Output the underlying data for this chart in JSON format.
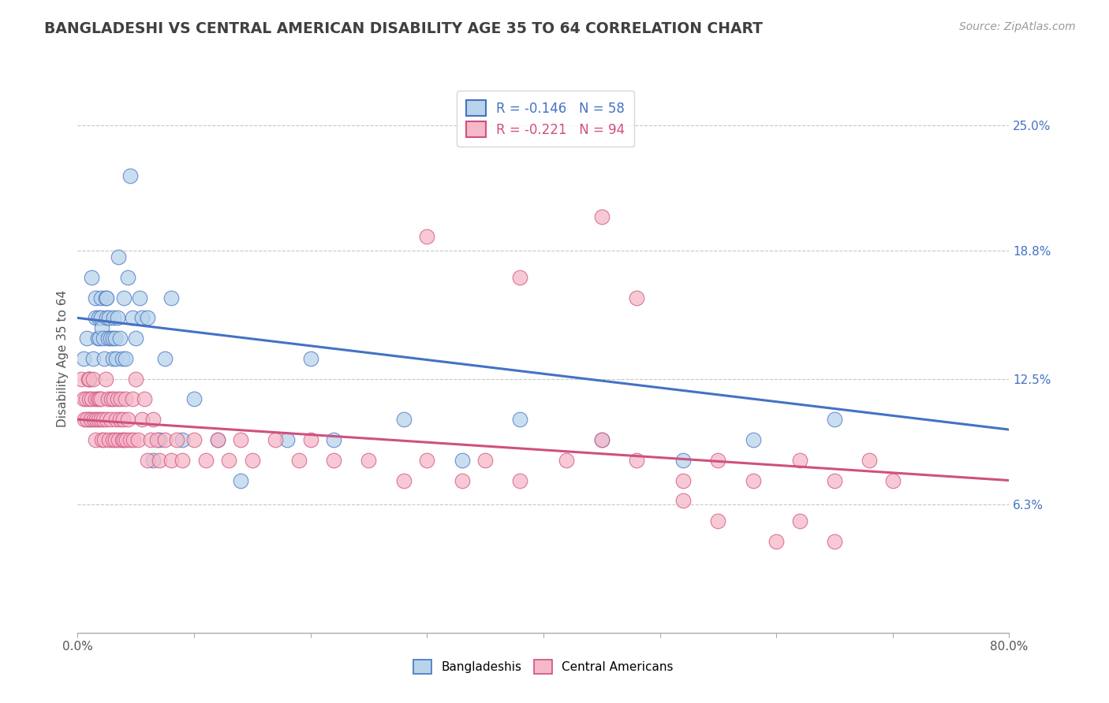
{
  "title": "BANGLADESHI VS CENTRAL AMERICAN DISABILITY AGE 35 TO 64 CORRELATION CHART",
  "source_text": "Source: ZipAtlas.com",
  "ylabel": "Disability Age 35 to 64",
  "xlim": [
    0.0,
    0.8
  ],
  "ylim": [
    0.0,
    0.27
  ],
  "xticks": [
    0.0,
    0.1,
    0.2,
    0.3,
    0.4,
    0.5,
    0.6,
    0.7,
    0.8
  ],
  "xticklabels": [
    "0.0%",
    "",
    "",
    "",
    "",
    "",
    "",
    "",
    "80.0%"
  ],
  "ytick_positions": [
    0.063,
    0.125,
    0.188,
    0.25
  ],
  "yticklabels_right": [
    "6.3%",
    "12.5%",
    "18.8%",
    "25.0%"
  ],
  "r_bangladeshi": -0.146,
  "n_bangladeshi": 58,
  "r_central": -0.221,
  "n_central": 94,
  "color_bangladeshi": "#b8d4ea",
  "color_central": "#f5b8c8",
  "line_color_bangladeshi": "#4472c4",
  "line_color_central": "#d05080",
  "background_color": "#ffffff",
  "grid_color": "#c8c8c8",
  "title_color": "#404040",
  "ban_line_start_y": 0.155,
  "ban_line_end_y": 0.1,
  "cen_line_start_y": 0.105,
  "cen_line_end_y": 0.075,
  "bangladeshi_x": [
    0.005,
    0.008,
    0.01,
    0.01,
    0.012,
    0.013,
    0.015,
    0.015,
    0.017,
    0.018,
    0.019,
    0.02,
    0.02,
    0.021,
    0.022,
    0.023,
    0.024,
    0.025,
    0.025,
    0.026,
    0.027,
    0.028,
    0.03,
    0.03,
    0.031,
    0.032,
    0.033,
    0.034,
    0.035,
    0.036,
    0.038,
    0.04,
    0.041,
    0.043,
    0.045,
    0.047,
    0.05,
    0.053,
    0.055,
    0.06,
    0.065,
    0.07,
    0.075,
    0.08,
    0.09,
    0.1,
    0.12,
    0.14,
    0.18,
    0.2,
    0.22,
    0.28,
    0.33,
    0.38,
    0.45,
    0.52,
    0.58,
    0.65
  ],
  "bangladeshi_y": [
    0.135,
    0.145,
    0.105,
    0.125,
    0.175,
    0.135,
    0.165,
    0.155,
    0.145,
    0.155,
    0.145,
    0.165,
    0.155,
    0.15,
    0.145,
    0.135,
    0.165,
    0.155,
    0.165,
    0.145,
    0.155,
    0.145,
    0.135,
    0.145,
    0.155,
    0.145,
    0.135,
    0.155,
    0.185,
    0.145,
    0.135,
    0.165,
    0.135,
    0.175,
    0.225,
    0.155,
    0.145,
    0.165,
    0.155,
    0.155,
    0.085,
    0.095,
    0.135,
    0.165,
    0.095,
    0.115,
    0.095,
    0.075,
    0.095,
    0.135,
    0.095,
    0.105,
    0.085,
    0.105,
    0.095,
    0.085,
    0.095,
    0.105
  ],
  "central_x": [
    0.003,
    0.005,
    0.006,
    0.007,
    0.008,
    0.009,
    0.01,
    0.01,
    0.011,
    0.012,
    0.013,
    0.014,
    0.015,
    0.015,
    0.016,
    0.017,
    0.018,
    0.019,
    0.02,
    0.02,
    0.021,
    0.022,
    0.023,
    0.024,
    0.025,
    0.026,
    0.027,
    0.028,
    0.029,
    0.03,
    0.031,
    0.032,
    0.033,
    0.034,
    0.035,
    0.036,
    0.037,
    0.038,
    0.039,
    0.04,
    0.041,
    0.042,
    0.043,
    0.045,
    0.047,
    0.048,
    0.05,
    0.052,
    0.055,
    0.057,
    0.06,
    0.063,
    0.065,
    0.068,
    0.07,
    0.075,
    0.08,
    0.085,
    0.09,
    0.1,
    0.11,
    0.12,
    0.13,
    0.14,
    0.15,
    0.17,
    0.19,
    0.2,
    0.22,
    0.25,
    0.28,
    0.3,
    0.33,
    0.35,
    0.38,
    0.42,
    0.45,
    0.48,
    0.52,
    0.55,
    0.58,
    0.62,
    0.65,
    0.68,
    0.7,
    0.45,
    0.38,
    0.48,
    0.3,
    0.52,
    0.55,
    0.6,
    0.62,
    0.65
  ],
  "central_y": [
    0.125,
    0.115,
    0.105,
    0.115,
    0.105,
    0.125,
    0.115,
    0.125,
    0.105,
    0.115,
    0.125,
    0.105,
    0.095,
    0.115,
    0.105,
    0.115,
    0.105,
    0.115,
    0.105,
    0.115,
    0.095,
    0.105,
    0.095,
    0.125,
    0.105,
    0.115,
    0.095,
    0.105,
    0.115,
    0.095,
    0.115,
    0.095,
    0.105,
    0.115,
    0.095,
    0.105,
    0.115,
    0.095,
    0.105,
    0.095,
    0.115,
    0.095,
    0.105,
    0.095,
    0.115,
    0.095,
    0.125,
    0.095,
    0.105,
    0.115,
    0.085,
    0.095,
    0.105,
    0.095,
    0.085,
    0.095,
    0.085,
    0.095,
    0.085,
    0.095,
    0.085,
    0.095,
    0.085,
    0.095,
    0.085,
    0.095,
    0.085,
    0.095,
    0.085,
    0.085,
    0.075,
    0.085,
    0.075,
    0.085,
    0.075,
    0.085,
    0.095,
    0.085,
    0.075,
    0.085,
    0.075,
    0.085,
    0.075,
    0.085,
    0.075,
    0.205,
    0.175,
    0.165,
    0.195,
    0.065,
    0.055,
    0.045,
    0.055,
    0.045
  ]
}
